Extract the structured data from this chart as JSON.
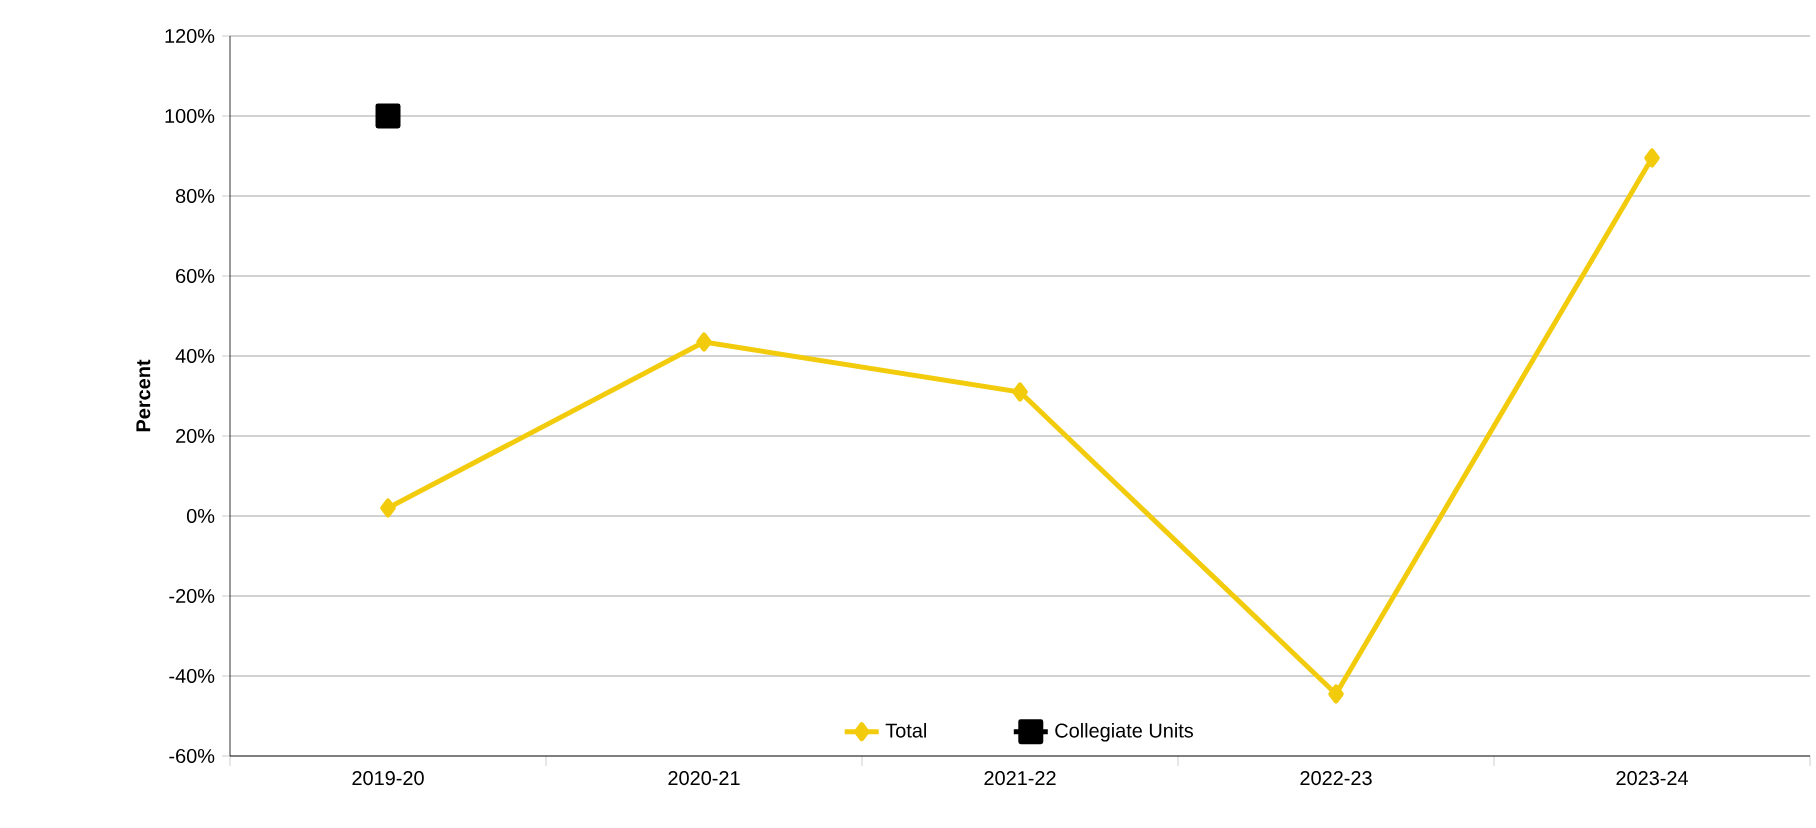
{
  "chart_data": {
    "type": "line",
    "ylabel": "Percent",
    "categories": [
      "2019-20",
      "2020-21",
      "2021-22",
      "2022-23",
      "2023-24"
    ],
    "series": [
      {
        "name": "Total",
        "color": "#f2cc0c",
        "marker": "diamond",
        "values": [
          2,
          43.5,
          31,
          -44.5,
          89.5
        ]
      },
      {
        "name": "Collegiate Units",
        "color": "#000000",
        "marker": "square",
        "values": [
          100,
          null,
          null,
          null,
          null
        ]
      }
    ],
    "ylim": [
      -60,
      120
    ],
    "yticks": [
      {
        "value": -60,
        "label": "-60%"
      },
      {
        "value": -40,
        "label": "-40%"
      },
      {
        "value": -20,
        "label": "-20%"
      },
      {
        "value": 0,
        "label": "0%"
      },
      {
        "value": 20,
        "label": "20%"
      },
      {
        "value": 40,
        "label": "40%"
      },
      {
        "value": 60,
        "label": "60%"
      },
      {
        "value": 80,
        "label": "80%"
      },
      {
        "value": 100,
        "label": "100%"
      },
      {
        "value": 120,
        "label": "120%"
      }
    ],
    "grid": "y",
    "legend": "bottom",
    "line_style": "solid"
  }
}
